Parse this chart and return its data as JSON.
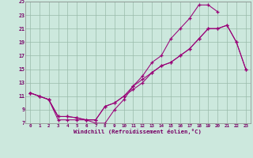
{
  "xlabel": "Windchill (Refroidissement éolien,°C)",
  "bg_color": "#cce8dd",
  "line_color": "#990077",
  "grid_color": "#99bbaa",
  "xlim": [
    -0.5,
    23.5
  ],
  "ylim": [
    7,
    25
  ],
  "xticks": [
    0,
    1,
    2,
    3,
    4,
    5,
    6,
    7,
    8,
    9,
    10,
    11,
    12,
    13,
    14,
    15,
    16,
    17,
    18,
    19,
    20,
    21,
    22,
    23
  ],
  "yticks": [
    7,
    9,
    11,
    13,
    15,
    17,
    19,
    21,
    23,
    25
  ],
  "line1_x": [
    0,
    1,
    2,
    3,
    4,
    5,
    6,
    7,
    8,
    9,
    10,
    11,
    12,
    13,
    14,
    15,
    16,
    17,
    18,
    19,
    20,
    21,
    22,
    23
  ],
  "line1_y": [
    11.5,
    11,
    10.5,
    8,
    8,
    7.8,
    7.5,
    7.5,
    9.5,
    10,
    11,
    12,
    13,
    14.5,
    15.5,
    16,
    17,
    18,
    19.5,
    21,
    21,
    21.5,
    19,
    15
  ],
  "line2_x": [
    0,
    1,
    2,
    3,
    4,
    5,
    6,
    7,
    8,
    9,
    10,
    11,
    12,
    13,
    14,
    15,
    16,
    17,
    18,
    19,
    20
  ],
  "line2_y": [
    11.5,
    11,
    10.5,
    7.5,
    7.5,
    7.5,
    7.5,
    7,
    7,
    9,
    10.5,
    12.5,
    14,
    16,
    17,
    19.5,
    21,
    22.5,
    24.5,
    24.5,
    23.5
  ],
  "line3_x": [
    0,
    1,
    2,
    3,
    4,
    5,
    6,
    7,
    8,
    9,
    10,
    11,
    12,
    13,
    14,
    15,
    16,
    17,
    18,
    19,
    20,
    21,
    22,
    23
  ],
  "line3_y": [
    11.5,
    11,
    10.5,
    8,
    8,
    7.8,
    7.5,
    7.5,
    9.5,
    10,
    11,
    12.5,
    13.5,
    14.5,
    15.5,
    16,
    17,
    18,
    19.5,
    21,
    21,
    21.5,
    19,
    15
  ]
}
